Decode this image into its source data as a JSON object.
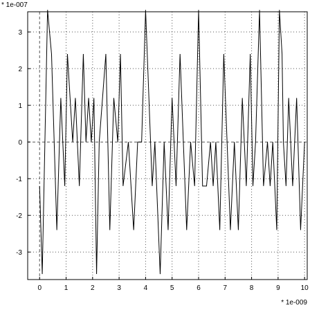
{
  "chart_data": {
    "type": "line",
    "x_scale_label": "* 1e-009",
    "y_scale_label": "* 1e-007",
    "xlim": [
      -0.45,
      10.1
    ],
    "ylim": [
      -3.75,
      3.55
    ],
    "x_ticks": [
      "0",
      "1",
      "2",
      "3",
      "4",
      "5",
      "6",
      "7",
      "8",
      "9",
      "10"
    ],
    "y_ticks": [
      "3",
      "2",
      "1",
      "0",
      "-1",
      "-2",
      "-3"
    ],
    "x_tick_values": [
      0,
      1,
      2,
      3,
      4,
      5,
      6,
      7,
      8,
      9,
      10
    ],
    "y_tick_values": [
      3,
      2,
      1,
      0,
      -1,
      -2,
      -3
    ],
    "grid": "dotted",
    "zero_line": "dashed",
    "series": [
      {
        "color": "#000000",
        "x": [
          0.0,
          0.1,
          0.3,
          0.45,
          0.65,
          0.8,
          0.95,
          1.05,
          1.25,
          1.35,
          1.5,
          1.65,
          1.75,
          1.85,
          1.95,
          2.05,
          2.15,
          2.25,
          2.5,
          2.65,
          2.8,
          2.95,
          3.05,
          3.15,
          3.35,
          3.55,
          3.7,
          3.85,
          4.0,
          4.25,
          4.35,
          4.55,
          4.7,
          4.85,
          5.0,
          5.15,
          5.3,
          5.55,
          5.7,
          5.85,
          6.0,
          6.15,
          6.3,
          6.45,
          6.55,
          6.65,
          6.8,
          6.95,
          7.2,
          7.35,
          7.5,
          7.65,
          7.8,
          7.95,
          8.05,
          8.15,
          8.3,
          8.45,
          8.6,
          8.7,
          8.8,
          8.95,
          9.05,
          9.15,
          9.2,
          9.3,
          9.4,
          9.55,
          9.7,
          9.85,
          10.0
        ],
        "y": [
          -1.2,
          -3.6,
          3.6,
          2.4,
          -2.4,
          1.2,
          -1.2,
          2.4,
          0.0,
          1.2,
          -1.2,
          2.4,
          0.0,
          1.2,
          0.0,
          1.2,
          -3.6,
          0.0,
          2.4,
          -2.4,
          1.2,
          0.0,
          2.4,
          -1.2,
          0.0,
          -2.4,
          0.0,
          0.0,
          3.6,
          -1.2,
          0.0,
          -3.6,
          0.0,
          -2.4,
          1.2,
          -1.2,
          2.4,
          -2.4,
          0.0,
          -1.2,
          3.6,
          -1.2,
          -1.2,
          0.0,
          -1.2,
          0.0,
          -2.4,
          2.4,
          -2.4,
          0.0,
          -2.4,
          1.2,
          -1.2,
          2.4,
          -1.2,
          0.0,
          3.6,
          -1.2,
          0.0,
          -1.2,
          0.0,
          -2.4,
          3.6,
          2.4,
          0.0,
          -1.2,
          1.2,
          -1.2,
          1.2,
          -2.4,
          0.0
        ]
      }
    ]
  }
}
